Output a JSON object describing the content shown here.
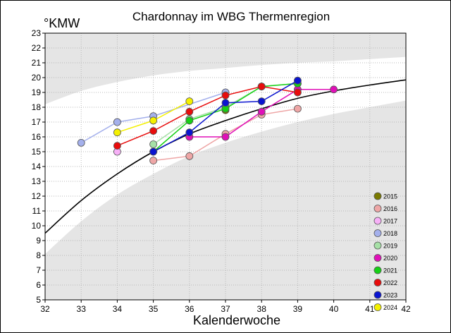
{
  "chart_data": {
    "type": "line",
    "title": "Chardonnay im WBG Thermenregion",
    "ylabel": "°KMW",
    "xlabel": "Kalenderwoche",
    "xlim": [
      32,
      42
    ],
    "ylim": [
      5,
      23
    ],
    "x_ticks": [
      "32",
      "33",
      "34",
      "35",
      "36",
      "37",
      "38",
      "39",
      "40",
      "41",
      "42"
    ],
    "y_ticks": [
      "5",
      "6",
      "7",
      "8",
      "9",
      "10",
      "11",
      "12",
      "13",
      "14",
      "15",
      "16",
      "17",
      "18",
      "19",
      "20",
      "21",
      "22",
      "23"
    ],
    "grid": true,
    "legend_position": "bottom-right",
    "reference_curve": {
      "color": "#000000",
      "x": [
        32,
        33,
        34,
        35,
        36,
        37,
        38,
        39,
        40,
        41,
        42
      ],
      "y": [
        9.5,
        11.7,
        13.5,
        15.0,
        16.2,
        17.1,
        17.9,
        18.6,
        19.1,
        19.5,
        19.85
      ]
    },
    "bands": {
      "gray_upper": {
        "x": [
          32,
          33,
          34,
          35,
          36,
          37,
          38,
          39,
          40,
          41,
          42
        ],
        "y": [
          18.2,
          19.1,
          19.7,
          20.15,
          20.45,
          20.65,
          20.85,
          21.0,
          21.1,
          21.25,
          21.4
        ]
      },
      "white_upper": {
        "x": [
          32,
          33,
          34,
          35,
          36,
          37,
          38,
          39,
          40,
          41,
          42
        ],
        "y": [
          11.3,
          13.6,
          15.6,
          17.2,
          18.35,
          19.1,
          19.6,
          20.05,
          20.4,
          20.75,
          21.1
        ]
      },
      "white_lower": {
        "x": [
          32,
          33,
          34,
          35,
          36,
          37,
          38,
          39,
          40,
          41,
          42
        ],
        "y": [
          8.1,
          10.3,
          12.1,
          13.5,
          14.7,
          15.6,
          16.35,
          17.0,
          17.55,
          18.0,
          18.45
        ]
      }
    },
    "series": [
      {
        "name": "2015",
        "color": "#7a7a00",
        "x": [
          37
        ],
        "y": [
          17.8
        ]
      },
      {
        "name": "2016",
        "color": "#eea6a6",
        "x": [
          35,
          36,
          37,
          38,
          39
        ],
        "y": [
          14.4,
          14.7,
          16.2,
          17.5,
          17.9
        ]
      },
      {
        "name": "2017",
        "color": "#f7b0f7",
        "x": [
          34
        ],
        "y": [
          15.0
        ]
      },
      {
        "name": "2018",
        "color": "#a4b0ec",
        "x": [
          33,
          34,
          35,
          37
        ],
        "y": [
          15.6,
          17.0,
          17.4,
          19.0
        ]
      },
      {
        "name": "2019",
        "color": "#a6e0a6",
        "x": [
          35,
          36,
          37,
          38,
          39
        ],
        "y": [
          15.5,
          17.2,
          18.0,
          19.4,
          19.6
        ]
      },
      {
        "name": "2020",
        "color": "#e010b8",
        "x": [
          36,
          37,
          38,
          39,
          40
        ],
        "y": [
          16.0,
          16.0,
          17.7,
          19.2,
          19.2
        ]
      },
      {
        "name": "2021",
        "color": "#16d016",
        "x": [
          35,
          36,
          37,
          38,
          39
        ],
        "y": [
          15.0,
          17.1,
          17.9,
          19.4,
          19.6
        ]
      },
      {
        "name": "2022",
        "color": "#e80c0c",
        "x": [
          34,
          35,
          36,
          37,
          38,
          39
        ],
        "y": [
          15.4,
          16.4,
          17.7,
          18.8,
          19.4,
          19.0
        ]
      },
      {
        "name": "2023",
        "color": "#0a14d0",
        "x": [
          35,
          36,
          37,
          38,
          39
        ],
        "y": [
          15.0,
          16.3,
          18.3,
          18.4,
          19.8
        ]
      },
      {
        "name": "2024",
        "color": "#f4f000",
        "x": [
          34,
          35,
          36
        ],
        "y": [
          16.3,
          17.1,
          18.4
        ]
      }
    ]
  }
}
